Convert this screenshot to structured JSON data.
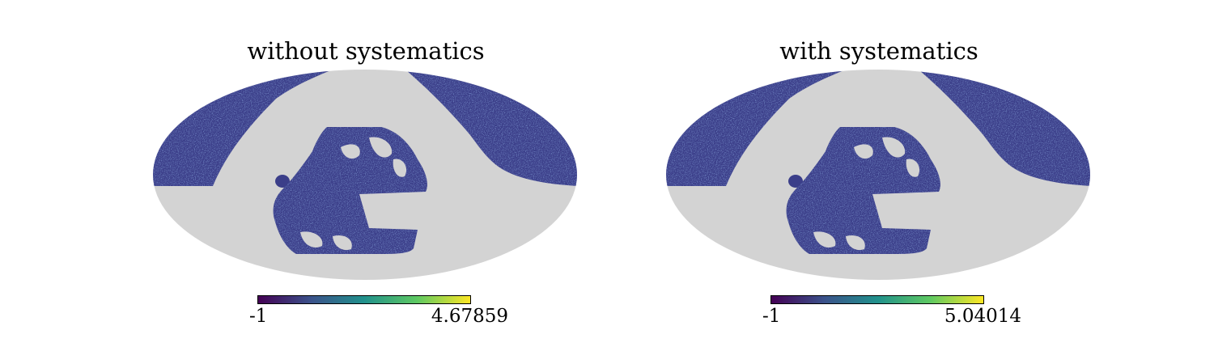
{
  "colors": {
    "mask": "#d3d3d3",
    "data_base": "#3b3e89",
    "colormap": [
      "#440154",
      "#3b528b",
      "#21918c",
      "#5ec962",
      "#fde725"
    ]
  },
  "maps": [
    {
      "title": "without systematics",
      "colorbar": {
        "min_label": "-1",
        "max_label": "4.67859",
        "min": -1,
        "max": 4.67859
      }
    },
    {
      "title": "with systematics",
      "colorbar": {
        "min_label": "-1",
        "max_label": "5.04014",
        "min": -1,
        "max": 5.04014
      }
    }
  ]
}
